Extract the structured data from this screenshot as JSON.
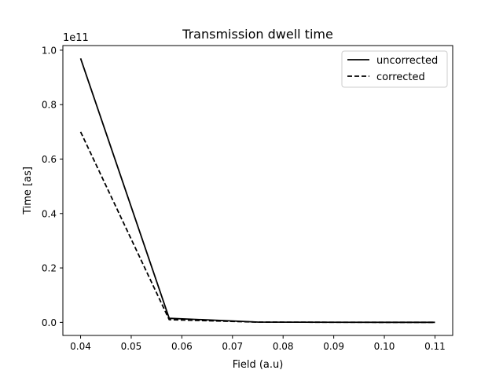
{
  "chart_data": {
    "type": "line",
    "title": "Transmission dwell time",
    "xlabel": "Field (a.u)",
    "ylabel": "Time [as]",
    "y_offset_label": "1e11",
    "xlim": [
      0.0365,
      0.1135
    ],
    "ylim": [
      -0.048,
      1.017
    ],
    "x_ticks": [
      0.04,
      0.05,
      0.06,
      0.07,
      0.08,
      0.09,
      0.1,
      0.11
    ],
    "x_tick_labels": [
      "0.04",
      "0.05",
      "0.06",
      "0.07",
      "0.08",
      "0.09",
      "0.10",
      "0.11"
    ],
    "y_ticks": [
      0.0,
      0.2,
      0.4,
      0.6,
      0.8,
      1.0
    ],
    "y_tick_labels": [
      "0.0",
      "0.2",
      "0.4",
      "0.6",
      "0.8",
      "1.0"
    ],
    "grid": false,
    "legend_position": "top-right",
    "series": [
      {
        "name": "uncorrected",
        "style": "solid",
        "color": "#000000",
        "x": [
          0.04,
          0.0575,
          0.075,
          0.0925,
          0.11
        ],
        "y": [
          0.97,
          0.015,
          0.001,
          0.0003,
          0.0001
        ]
      },
      {
        "name": "corrected",
        "style": "dashed",
        "color": "#000000",
        "x": [
          0.04,
          0.0575,
          0.075,
          0.0925,
          0.11
        ],
        "y": [
          0.7,
          0.01,
          0.001,
          0.0003,
          0.0001
        ]
      }
    ]
  }
}
